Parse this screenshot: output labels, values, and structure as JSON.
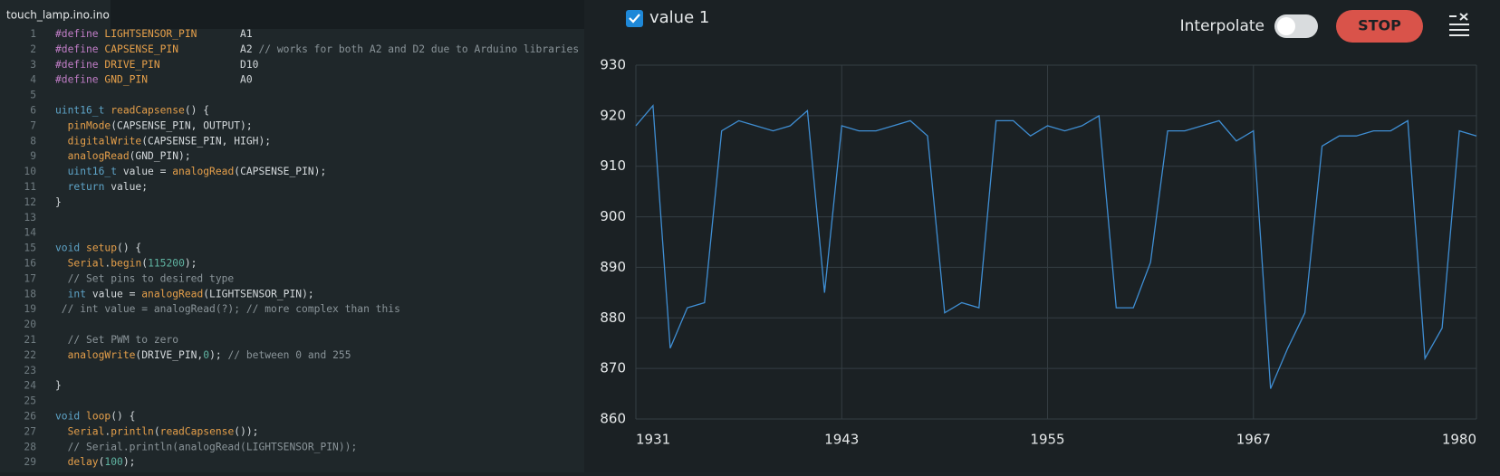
{
  "editor": {
    "tab": "touch_lamp.ino.ino",
    "line_numbers": [
      1,
      2,
      3,
      4,
      5,
      6,
      7,
      8,
      9,
      10,
      11,
      12,
      13,
      14,
      15,
      16,
      17,
      18,
      19,
      20,
      21,
      22,
      23,
      24,
      25,
      26,
      27,
      28,
      29
    ],
    "lines": [
      [
        [
          "#define ",
          "#c27ec8"
        ],
        [
          "LIGHTSENSOR_PIN",
          "#e59f4a"
        ],
        [
          "       A1",
          "#d4d9dc"
        ]
      ],
      [
        [
          "#define ",
          "#c27ec8"
        ],
        [
          "CAPSENSE_PIN",
          "#e59f4a"
        ],
        [
          "          A2 ",
          "#d4d9dc"
        ],
        [
          "// works for both A2 and D2 due to Arduino libraries",
          "#8a9499"
        ]
      ],
      [
        [
          "#define ",
          "#c27ec8"
        ],
        [
          "DRIVE_PIN",
          "#e59f4a"
        ],
        [
          "             D10",
          "#d4d9dc"
        ]
      ],
      [
        [
          "#define ",
          "#c27ec8"
        ],
        [
          "GND_PIN",
          "#e59f4a"
        ],
        [
          "               A0",
          "#d4d9dc"
        ]
      ],
      [],
      [
        [
          "uint16_t ",
          "#5ea4c8"
        ],
        [
          "readCapsense",
          "#e59f4a"
        ],
        [
          "() {",
          "#d4d9dc"
        ]
      ],
      [
        [
          "  pinMode",
          "#e59f4a"
        ],
        [
          "(CAPSENSE_PIN, OUTPUT);",
          "#d4d9dc"
        ]
      ],
      [
        [
          "  digitalWrite",
          "#e59f4a"
        ],
        [
          "(CAPSENSE_PIN, HIGH);",
          "#d4d9dc"
        ]
      ],
      [
        [
          "  analogRead",
          "#e59f4a"
        ],
        [
          "(GND_PIN);",
          "#d4d9dc"
        ]
      ],
      [
        [
          "  uint16_t ",
          "#5ea4c8"
        ],
        [
          "value = ",
          "#d4d9dc"
        ],
        [
          "analogRead",
          "#e59f4a"
        ],
        [
          "(CAPSENSE_PIN);",
          "#d4d9dc"
        ]
      ],
      [
        [
          "  return ",
          "#5ea4c8"
        ],
        [
          "value;",
          "#d4d9dc"
        ]
      ],
      [
        [
          "}",
          "#d4d9dc"
        ]
      ],
      [],
      [],
      [
        [
          "void ",
          "#5ea4c8"
        ],
        [
          "setup",
          "#e59f4a"
        ],
        [
          "() {",
          "#d4d9dc"
        ]
      ],
      [
        [
          "  Serial",
          "#e59f4a"
        ],
        [
          ".",
          "#d4d9dc"
        ],
        [
          "begin",
          "#e59f4a"
        ],
        [
          "(",
          "#d4d9dc"
        ],
        [
          "115200",
          "#5fb3a1"
        ],
        [
          ");",
          "#d4d9dc"
        ]
      ],
      [
        [
          "  // Set pins to desired type",
          "#8a9499"
        ]
      ],
      [
        [
          "  int ",
          "#5ea4c8"
        ],
        [
          "value = ",
          "#d4d9dc"
        ],
        [
          "analogRead",
          "#e59f4a"
        ],
        [
          "(LIGHTSENSOR_PIN);",
          "#d4d9dc"
        ]
      ],
      [
        [
          " // int value = analogRead(?); // more complex than this",
          "#8a9499"
        ]
      ],
      [],
      [
        [
          "  // Set PWM to zero",
          "#8a9499"
        ]
      ],
      [
        [
          "  analogWrite",
          "#e59f4a"
        ],
        [
          "(DRIVE_PIN,",
          "#d4d9dc"
        ],
        [
          "0",
          "#5fb3a1"
        ],
        [
          "); ",
          "#d4d9dc"
        ],
        [
          "// between 0 and 255",
          "#8a9499"
        ]
      ],
      [],
      [
        [
          "}",
          "#d4d9dc"
        ]
      ],
      [],
      [
        [
          "void ",
          "#5ea4c8"
        ],
        [
          "loop",
          "#e59f4a"
        ],
        [
          "() {",
          "#d4d9dc"
        ]
      ],
      [
        [
          "  Serial",
          "#e59f4a"
        ],
        [
          ".",
          "#d4d9dc"
        ],
        [
          "println",
          "#e59f4a"
        ],
        [
          "(",
          "#d4d9dc"
        ],
        [
          "readCapsense",
          "#e59f4a"
        ],
        [
          "());",
          "#d4d9dc"
        ]
      ],
      [
        [
          "  // Serial.println(analogRead(LIGHTSENSOR_PIN));",
          "#8a9499"
        ]
      ],
      [
        [
          "  delay",
          "#e59f4a"
        ],
        [
          "(",
          "#d4d9dc"
        ],
        [
          "100",
          "#5fb3a1"
        ],
        [
          ");",
          "#d4d9dc"
        ]
      ]
    ]
  },
  "plotter": {
    "type": "line",
    "interpolate": {
      "label": "Interpolate",
      "on": false
    },
    "stop": "STOP",
    "x": [
      1931,
      1932,
      1933,
      1934,
      1935,
      1936,
      1937,
      1938,
      1939,
      1940,
      1941,
      1942,
      1943,
      1944,
      1945,
      1946,
      1947,
      1948,
      1949,
      1950,
      1951,
      1952,
      1953,
      1954,
      1955,
      1956,
      1957,
      1958,
      1959,
      1960,
      1961,
      1962,
      1963,
      1964,
      1965,
      1966,
      1967,
      1968,
      1969,
      1970,
      1971,
      1972,
      1973,
      1974,
      1975,
      1976,
      1977,
      1978,
      1979,
      1980
    ],
    "series": [
      {
        "name": "value 1",
        "color": "#3f8ed3",
        "visible": true,
        "values": [
          918,
          922,
          874,
          882,
          883,
          917,
          919,
          918,
          917,
          918,
          921,
          885,
          918,
          917,
          917,
          918,
          919,
          916,
          881,
          883,
          882,
          919,
          919,
          916,
          918,
          917,
          918,
          920,
          882,
          882,
          891,
          917,
          917,
          918,
          919,
          915,
          917,
          866,
          874,
          881,
          914,
          916,
          916,
          917,
          917,
          919,
          872,
          878,
          917,
          916
        ]
      }
    ],
    "xlim": [
      1931,
      1980
    ],
    "xticks": [
      1931,
      1943,
      1955,
      1967,
      1980
    ],
    "ylim": [
      860,
      930
    ],
    "yticks": [
      860,
      870,
      880,
      890,
      900,
      910,
      920,
      930
    ],
    "grid": true
  }
}
